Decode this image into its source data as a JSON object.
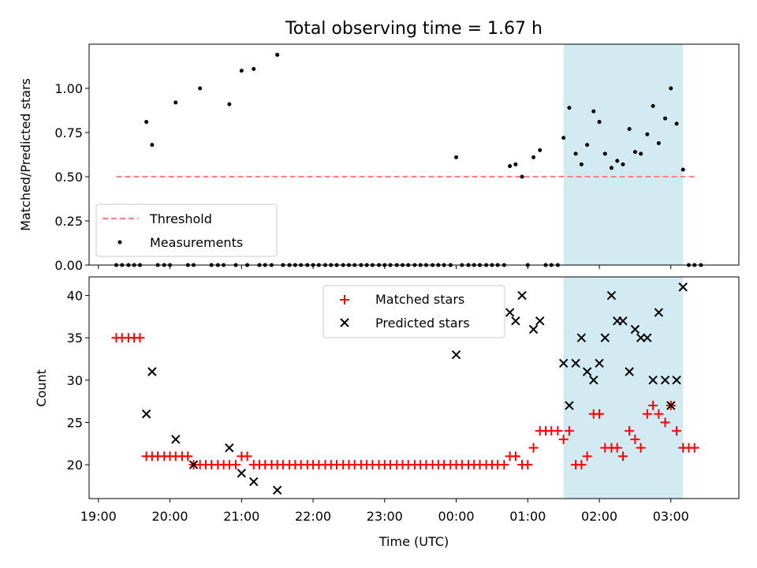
{
  "chart_data": [
    {
      "type": "scatter",
      "title": "Total observing time = 1.67 h",
      "ylabel": "Matched/Predicted stars",
      "xlabel": "",
      "x_unit": "hours since 19:00 UTC on the first night",
      "xlim": [
        -0.13,
        8.95
      ],
      "ylim": [
        0.0,
        1.25
      ],
      "yticks": [
        "0.00",
        "0.25",
        "0.50",
        "0.75",
        "1.00"
      ],
      "highlight_span": {
        "x": [
          6.5,
          8.17
        ],
        "color": "#add8e6"
      },
      "threshold": {
        "name": "Threshold",
        "y": 0.5,
        "x": [
          0.25,
          8.35
        ],
        "color": "#ff8080",
        "style": "dashed"
      },
      "legend": {
        "position": "lower left",
        "entries": [
          "Threshold",
          "Measurements"
        ]
      },
      "series": [
        {
          "name": "Measurements",
          "color": "#000000",
          "points": [
            [
              0.25,
              0
            ],
            [
              0.33,
              0
            ],
            [
              0.42,
              0
            ],
            [
              0.5,
              0
            ],
            [
              0.58,
              0
            ],
            [
              0.67,
              0.81
            ],
            [
              0.75,
              0.68
            ],
            [
              0.83,
              0
            ],
            [
              0.92,
              0
            ],
            [
              1.0,
              0
            ],
            [
              1.08,
              0.92
            ],
            [
              1.25,
              0
            ],
            [
              1.33,
              0
            ],
            [
              1.42,
              1.0
            ],
            [
              1.58,
              0
            ],
            [
              1.67,
              0
            ],
            [
              1.75,
              0
            ],
            [
              1.83,
              0.91
            ],
            [
              1.92,
              0
            ],
            [
              2.0,
              1.1
            ],
            [
              2.08,
              0
            ],
            [
              2.17,
              1.11
            ],
            [
              2.25,
              0
            ],
            [
              2.33,
              0
            ],
            [
              2.42,
              0
            ],
            [
              2.5,
              1.19
            ],
            [
              2.58,
              0
            ],
            [
              2.67,
              0
            ],
            [
              2.75,
              0
            ],
            [
              2.83,
              0
            ],
            [
              2.92,
              0
            ],
            [
              3.0,
              0
            ],
            [
              3.08,
              0
            ],
            [
              3.17,
              0
            ],
            [
              3.25,
              0
            ],
            [
              3.33,
              0
            ],
            [
              3.42,
              0
            ],
            [
              3.5,
              0
            ],
            [
              3.58,
              0
            ],
            [
              3.67,
              0
            ],
            [
              3.75,
              0
            ],
            [
              3.83,
              0
            ],
            [
              3.92,
              0
            ],
            [
              4.0,
              0
            ],
            [
              4.08,
              0
            ],
            [
              4.17,
              0
            ],
            [
              4.25,
              0
            ],
            [
              4.33,
              0
            ],
            [
              4.42,
              0
            ],
            [
              4.5,
              0
            ],
            [
              4.58,
              0
            ],
            [
              4.67,
              0
            ],
            [
              4.75,
              0
            ],
            [
              4.83,
              0
            ],
            [
              4.92,
              0
            ],
            [
              5.0,
              0.61
            ],
            [
              5.08,
              0
            ],
            [
              5.17,
              0
            ],
            [
              5.25,
              0
            ],
            [
              5.33,
              0
            ],
            [
              5.42,
              0
            ],
            [
              5.5,
              0
            ],
            [
              5.58,
              0
            ],
            [
              5.67,
              0
            ],
            [
              5.75,
              0.56
            ],
            [
              5.83,
              0.57
            ],
            [
              5.92,
              0.5
            ],
            [
              6.0,
              0
            ],
            [
              6.08,
              0.61
            ],
            [
              6.17,
              0.65
            ],
            [
              6.25,
              0
            ],
            [
              6.33,
              0
            ],
            [
              6.42,
              0
            ],
            [
              6.5,
              0.72
            ],
            [
              6.58,
              0.89
            ],
            [
              6.67,
              0.63
            ],
            [
              6.75,
              0.57
            ],
            [
              6.83,
              0.68
            ],
            [
              6.92,
              0.87
            ],
            [
              7.0,
              0.81
            ],
            [
              7.08,
              0.63
            ],
            [
              7.17,
              0.55
            ],
            [
              7.25,
              0.59
            ],
            [
              7.33,
              0.57
            ],
            [
              7.42,
              0.77
            ],
            [
              7.5,
              0.64
            ],
            [
              7.58,
              0.63
            ],
            [
              7.67,
              0.74
            ],
            [
              7.75,
              0.9
            ],
            [
              7.83,
              0.69
            ],
            [
              7.92,
              0.83
            ],
            [
              8.0,
              1.0
            ],
            [
              8.08,
              0.8
            ],
            [
              8.17,
              0.54
            ],
            [
              8.25,
              0
            ],
            [
              8.33,
              0
            ],
            [
              8.42,
              0
            ]
          ]
        }
      ]
    },
    {
      "type": "scatter",
      "title": "",
      "xlabel": "Time (UTC)",
      "ylabel": "Count",
      "x_unit": "hours since 19:00 UTC on the first night",
      "xlim": [
        -0.13,
        8.95
      ],
      "ylim": [
        16.0,
        42.2
      ],
      "yticks": [
        "20",
        "25",
        "30",
        "35",
        "40"
      ],
      "xticks": [
        {
          "x": 0,
          "label": "19:00"
        },
        {
          "x": 1,
          "label": "20:00"
        },
        {
          "x": 2,
          "label": "21:00"
        },
        {
          "x": 3,
          "label": "22:00"
        },
        {
          "x": 4,
          "label": "23:00"
        },
        {
          "x": 5,
          "label": "00:00"
        },
        {
          "x": 6,
          "label": "01:00"
        },
        {
          "x": 7,
          "label": "02:00"
        },
        {
          "x": 8,
          "label": "03:00"
        }
      ],
      "highlight_span": {
        "x": [
          6.5,
          8.17
        ],
        "color": "#add8e6"
      },
      "legend": {
        "position": "upper center",
        "entries": [
          "Matched stars",
          "Predicted stars"
        ]
      },
      "series": [
        {
          "name": "Matched stars",
          "marker": "plus",
          "color": "#ff0000",
          "points": [
            [
              0.25,
              35
            ],
            [
              0.33,
              35
            ],
            [
              0.42,
              35
            ],
            [
              0.5,
              35
            ],
            [
              0.58,
              35
            ],
            [
              0.67,
              21
            ],
            [
              0.75,
              21
            ],
            [
              0.83,
              21
            ],
            [
              0.92,
              21
            ],
            [
              1.0,
              21
            ],
            [
              1.08,
              21
            ],
            [
              1.17,
              21
            ],
            [
              1.25,
              21
            ],
            [
              1.33,
              20
            ],
            [
              1.42,
              20
            ],
            [
              1.5,
              20
            ],
            [
              1.58,
              20
            ],
            [
              1.67,
              20
            ],
            [
              1.75,
              20
            ],
            [
              1.83,
              20
            ],
            [
              1.92,
              20
            ],
            [
              2.0,
              21
            ],
            [
              2.08,
              21
            ],
            [
              2.17,
              20
            ],
            [
              2.25,
              20
            ],
            [
              2.33,
              20
            ],
            [
              2.42,
              20
            ],
            [
              2.5,
              20
            ],
            [
              2.58,
              20
            ],
            [
              2.67,
              20
            ],
            [
              2.75,
              20
            ],
            [
              2.83,
              20
            ],
            [
              2.92,
              20
            ],
            [
              3.0,
              20
            ],
            [
              3.08,
              20
            ],
            [
              3.17,
              20
            ],
            [
              3.25,
              20
            ],
            [
              3.33,
              20
            ],
            [
              3.42,
              20
            ],
            [
              3.5,
              20
            ],
            [
              3.58,
              20
            ],
            [
              3.67,
              20
            ],
            [
              3.75,
              20
            ],
            [
              3.83,
              20
            ],
            [
              3.92,
              20
            ],
            [
              4.0,
              20
            ],
            [
              4.08,
              20
            ],
            [
              4.17,
              20
            ],
            [
              4.25,
              20
            ],
            [
              4.33,
              20
            ],
            [
              4.42,
              20
            ],
            [
              4.5,
              20
            ],
            [
              4.58,
              20
            ],
            [
              4.67,
              20
            ],
            [
              4.75,
              20
            ],
            [
              4.83,
              20
            ],
            [
              4.92,
              20
            ],
            [
              5.0,
              20
            ],
            [
              5.08,
              20
            ],
            [
              5.17,
              20
            ],
            [
              5.25,
              20
            ],
            [
              5.33,
              20
            ],
            [
              5.42,
              20
            ],
            [
              5.5,
              20
            ],
            [
              5.58,
              20
            ],
            [
              5.67,
              20
            ],
            [
              5.75,
              21
            ],
            [
              5.83,
              21
            ],
            [
              5.92,
              20
            ],
            [
              6.0,
              20
            ],
            [
              6.08,
              22
            ],
            [
              6.17,
              24
            ],
            [
              6.25,
              24
            ],
            [
              6.33,
              24
            ],
            [
              6.42,
              24
            ],
            [
              6.5,
              23
            ],
            [
              6.58,
              24
            ],
            [
              6.67,
              20
            ],
            [
              6.75,
              20
            ],
            [
              6.83,
              21
            ],
            [
              6.92,
              26
            ],
            [
              7.0,
              26
            ],
            [
              7.08,
              22
            ],
            [
              7.17,
              22
            ],
            [
              7.25,
              22
            ],
            [
              7.33,
              21
            ],
            [
              7.42,
              24
            ],
            [
              7.5,
              23
            ],
            [
              7.58,
              22
            ],
            [
              7.67,
              26
            ],
            [
              7.75,
              27
            ],
            [
              7.83,
              26
            ],
            [
              7.92,
              25
            ],
            [
              8.0,
              27
            ],
            [
              8.08,
              24
            ],
            [
              8.17,
              22
            ],
            [
              8.25,
              22
            ],
            [
              8.33,
              22
            ]
          ]
        },
        {
          "name": "Predicted stars",
          "marker": "x",
          "color": "#000000",
          "points": [
            [
              0.67,
              26
            ],
            [
              0.75,
              31
            ],
            [
              1.08,
              23
            ],
            [
              1.33,
              20
            ],
            [
              1.83,
              22
            ],
            [
              2.0,
              19
            ],
            [
              2.17,
              18
            ],
            [
              2.5,
              17
            ],
            [
              5.0,
              33
            ],
            [
              5.75,
              38
            ],
            [
              5.83,
              37
            ],
            [
              5.92,
              40
            ],
            [
              6.08,
              36
            ],
            [
              6.17,
              37
            ],
            [
              6.5,
              32
            ],
            [
              6.58,
              27
            ],
            [
              6.67,
              32
            ],
            [
              6.75,
              35
            ],
            [
              6.83,
              31
            ],
            [
              6.92,
              30
            ],
            [
              7.0,
              32
            ],
            [
              7.08,
              35
            ],
            [
              7.17,
              40
            ],
            [
              7.25,
              37
            ],
            [
              7.33,
              37
            ],
            [
              7.42,
              31
            ],
            [
              7.5,
              36
            ],
            [
              7.58,
              35
            ],
            [
              7.67,
              35
            ],
            [
              7.75,
              30
            ],
            [
              7.83,
              38
            ],
            [
              7.92,
              30
            ],
            [
              8.0,
              27
            ],
            [
              8.08,
              30
            ],
            [
              8.17,
              41
            ]
          ]
        }
      ]
    }
  ]
}
